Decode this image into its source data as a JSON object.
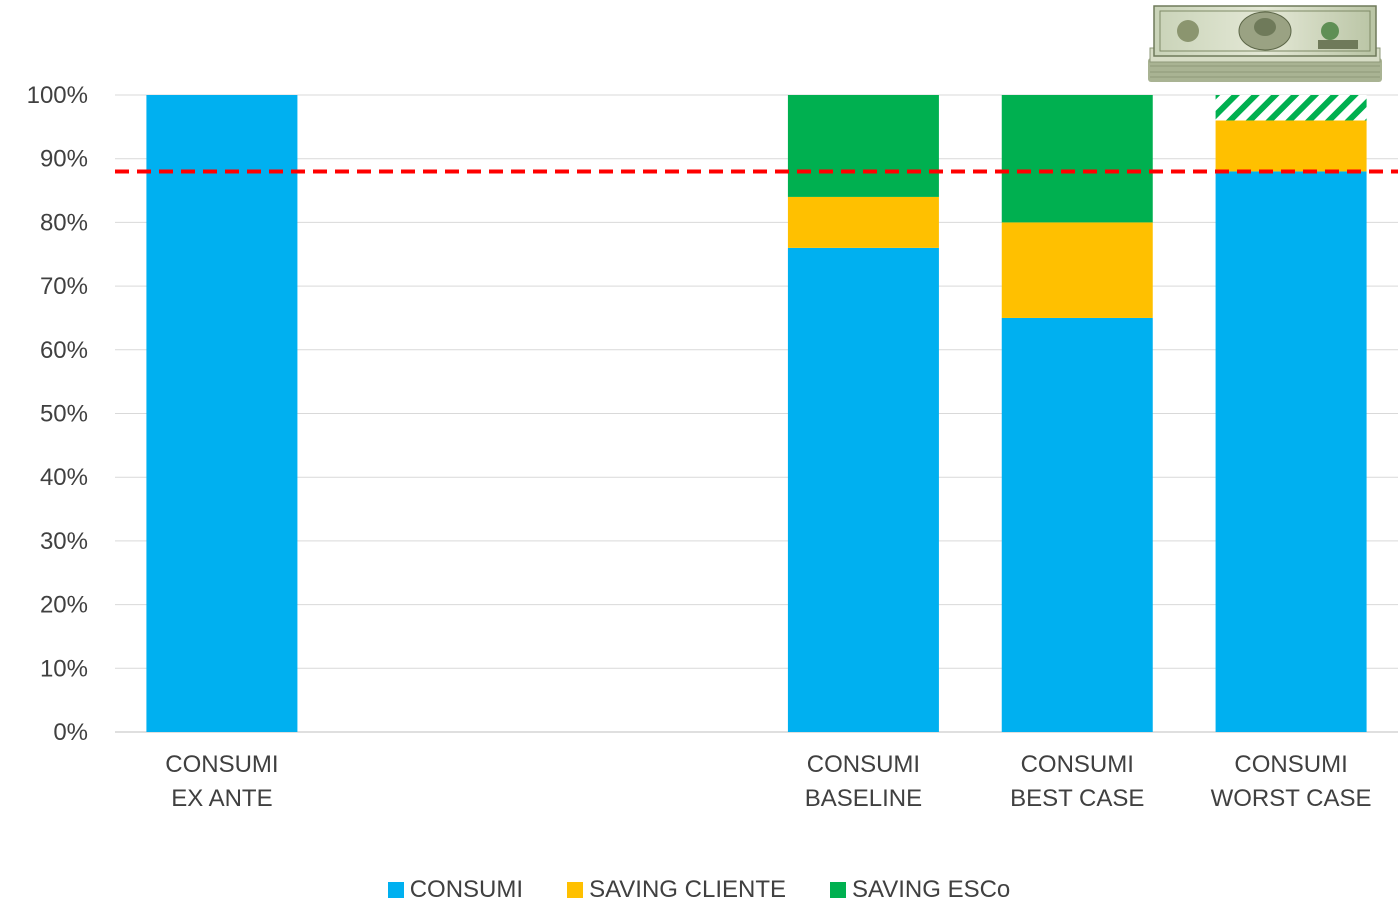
{
  "chart_data": {
    "type": "bar",
    "stacked": true,
    "categories": [
      [
        "CONSUMI",
        "EX ANTE"
      ],
      [
        "",
        ""
      ],
      [
        "",
        ""
      ],
      [
        "CONSUMI",
        "BASELINE"
      ],
      [
        "CONSUMI",
        "BEST CASE"
      ],
      [
        "CONSUMI",
        "WORST CASE"
      ]
    ],
    "series": [
      {
        "name": "CONSUMI",
        "color": "#00B0F0",
        "values": [
          100,
          null,
          null,
          76,
          65,
          88
        ]
      },
      {
        "name": "SAVING CLIENTE",
        "color": "#FFC000",
        "values": [
          0,
          null,
          null,
          8,
          15,
          8
        ]
      },
      {
        "name": "SAVING ESCo",
        "color": "#00B050",
        "values": [
          0,
          null,
          null,
          16,
          20,
          4
        ],
        "hatched_categories": [
          5
        ]
      }
    ],
    "ylim": [
      0,
      100
    ],
    "yticks": [
      "0%",
      "10%",
      "20%",
      "30%",
      "40%",
      "50%",
      "60%",
      "70%",
      "80%",
      "90%",
      "100%"
    ],
    "reference_line": {
      "value": 88,
      "color": "#FF0000",
      "style": "dashed"
    },
    "grid": true,
    "legend": "bottom",
    "title": "",
    "xlabel": "",
    "ylabel": "",
    "decoration": "money-stack-icon"
  }
}
